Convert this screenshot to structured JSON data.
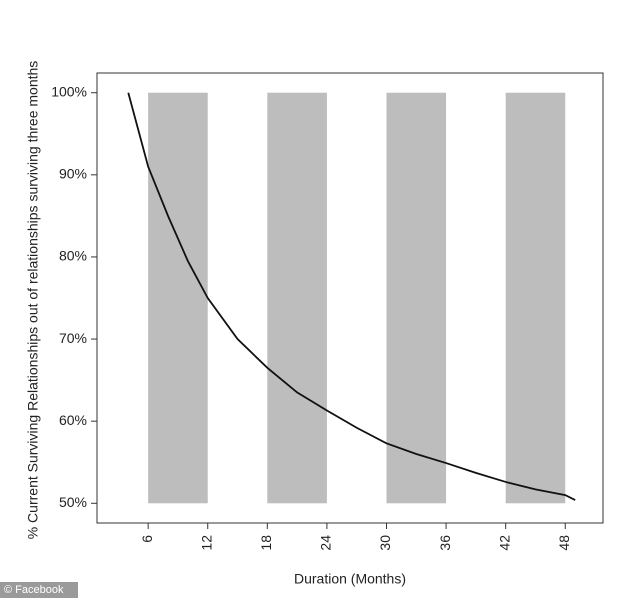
{
  "chart_data": {
    "type": "line",
    "x_label": "Duration (Months)",
    "y_label": "% Current Surviving Relationships out of relationships surviving three months",
    "x": [
      4,
      5,
      6,
      8,
      10,
      12,
      15,
      18,
      21,
      24,
      27,
      30,
      33,
      36,
      39,
      42,
      45,
      48,
      49
    ],
    "series": [
      {
        "color": "#111111",
        "values": [
          100,
          95.5,
          91,
          85,
          79.5,
          75,
          70,
          66.5,
          63.5,
          61.3,
          59.2,
          57.3,
          56,
          54.9,
          53.7,
          52.6,
          51.7,
          51,
          50.4
        ]
      }
    ],
    "bands": [
      [
        6,
        12
      ],
      [
        18,
        24
      ],
      [
        30,
        36
      ],
      [
        42,
        48
      ]
    ],
    "band_range": [
      50,
      100
    ],
    "band_color": "#bdbdbd",
    "xlim": [
      0.85,
      51.8
    ],
    "ylim": [
      47.6,
      102.4
    ],
    "xticks": [
      6,
      12,
      18,
      24,
      30,
      36,
      42,
      48
    ],
    "yticks": [
      {
        "value": 50,
        "label": "50%"
      },
      {
        "value": 60,
        "label": "60%"
      },
      {
        "value": 70,
        "label": "70%"
      },
      {
        "value": 80,
        "label": "80%"
      },
      {
        "value": 90,
        "label": "90%"
      },
      {
        "value": 100,
        "label": "100%"
      }
    ]
  },
  "watermark": "© Facebook"
}
